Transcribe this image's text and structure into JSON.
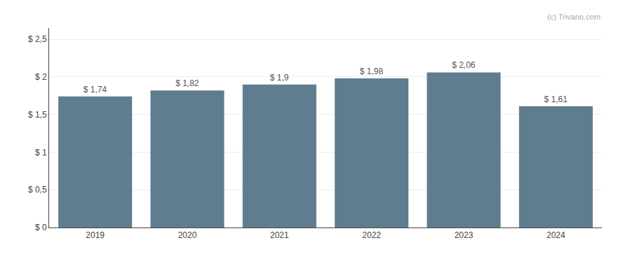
{
  "chart_data": {
    "type": "bar",
    "categories": [
      "2019",
      "2020",
      "2021",
      "2022",
      "2023",
      "2024"
    ],
    "values": [
      1.74,
      1.82,
      1.9,
      1.98,
      2.06,
      1.61
    ],
    "value_labels": [
      "$ 1,74",
      "$ 1,82",
      "$ 1,9",
      "$ 1,98",
      "$ 2,06",
      "$ 1,61"
    ],
    "data_labels": true,
    "color": "#607d8f",
    "ylim": [
      0,
      2.65
    ],
    "yticks": [
      {
        "value": 0,
        "label": "$ 0"
      },
      {
        "value": 0.5,
        "label": "$ 0,5"
      },
      {
        "value": 1.0,
        "label": "$ 1"
      },
      {
        "value": 1.5,
        "label": "$ 1,5"
      },
      {
        "value": 2.0,
        "label": "$ 2"
      },
      {
        "value": 2.5,
        "label": "$ 2,5"
      }
    ],
    "grid": true,
    "annotations": [
      "(c) Trivano.com"
    ]
  }
}
